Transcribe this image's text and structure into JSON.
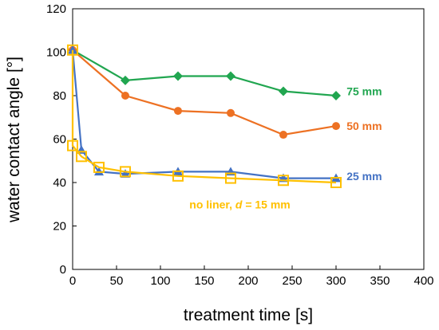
{
  "chart_data": {
    "type": "line",
    "title": "",
    "xlabel": "treatment time [s]",
    "ylabel": "water contact angle [°]",
    "xlim": [
      0,
      400
    ],
    "ylim": [
      0,
      120
    ],
    "xticks": [
      "0",
      "50",
      "100",
      "150",
      "200",
      "250",
      "300",
      "350",
      "400"
    ],
    "yticks": [
      "0",
      "20",
      "40",
      "60",
      "80",
      "100",
      "120"
    ],
    "grid": false,
    "legend": "none",
    "series": [
      {
        "name": "75 mm",
        "color": "#21a650",
        "marker": "diamond",
        "x": [
          0,
          60,
          120,
          180,
          240,
          300
        ],
        "y": [
          101,
          87,
          89,
          89,
          82,
          80
        ]
      },
      {
        "name": "50 mm",
        "color": "#ed7123",
        "marker": "circle",
        "x": [
          0,
          60,
          120,
          180,
          240,
          300
        ],
        "y": [
          101,
          80,
          73,
          72,
          62,
          66
        ]
      },
      {
        "name": "25 mm",
        "color": "#4472c4",
        "marker": "triangle",
        "x": [
          0,
          10,
          30,
          60,
          120,
          180,
          240,
          300
        ],
        "y": [
          101,
          55,
          45,
          44,
          45,
          45,
          42,
          42
        ]
      },
      {
        "name": "no liner, d = 15 mm",
        "color": "#ffc000",
        "marker": "square-open",
        "x": [
          0,
          0,
          10,
          30,
          60,
          120,
          180,
          240,
          300
        ],
        "y": [
          101,
          57,
          52,
          47,
          45,
          43,
          42,
          41,
          40
        ]
      }
    ],
    "annotations": [
      {
        "series": 0,
        "text": "75 mm",
        "x": 312,
        "y": 82
      },
      {
        "series": 1,
        "text": "50 mm",
        "x": 312,
        "y": 66
      },
      {
        "series": 2,
        "text": "25 mm",
        "x": 312,
        "y": 43
      },
      {
        "series": 3,
        "text_prefix": "no liner, ",
        "text_italic": "d",
        "text_suffix": " = 15 mm",
        "x": 133,
        "y": 30
      }
    ]
  }
}
